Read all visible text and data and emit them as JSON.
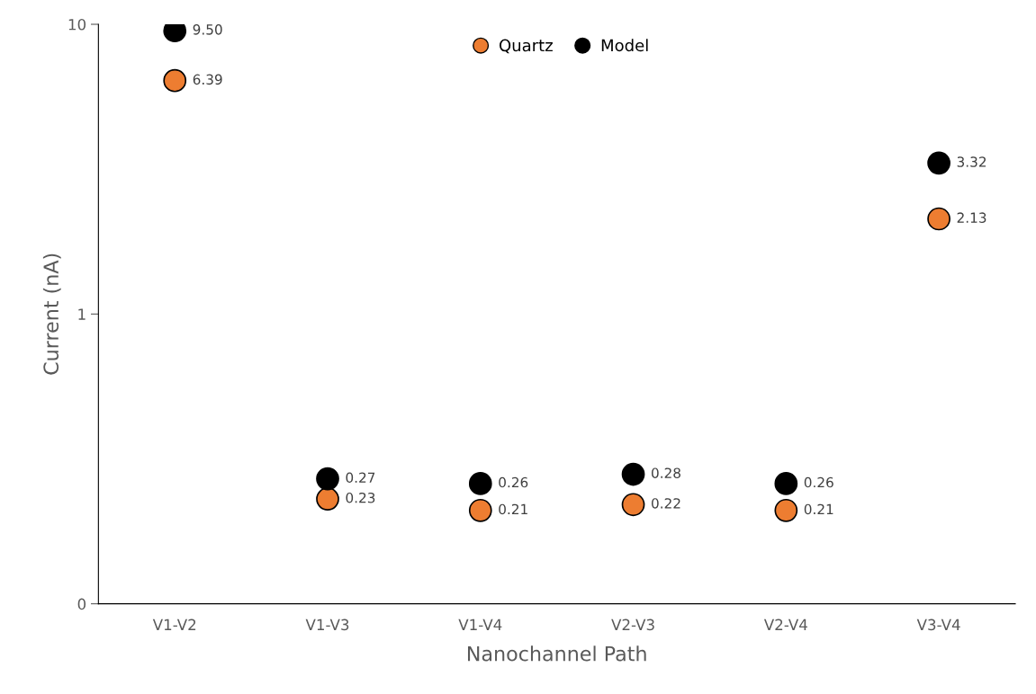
{
  "chart_data": {
    "type": "scatter",
    "xlabel": "Nanochannel Path",
    "ylabel": "Current (nA)",
    "categories": [
      "V1-V2",
      "V1-V3",
      "V1-V4",
      "V2-V3",
      "V2-V4",
      "V3-V4"
    ],
    "series": [
      {
        "name": "Quartz",
        "color": "#ed7d31",
        "values": [
          6.39,
          0.23,
          0.21,
          0.22,
          0.21,
          2.13
        ],
        "value_labels": [
          "6.39",
          "0.23",
          "0.21",
          "0.22",
          "0.21",
          "2.13"
        ]
      },
      {
        "name": "Model",
        "color": "#000000",
        "values": [
          9.5,
          0.27,
          0.26,
          0.28,
          0.26,
          3.32
        ],
        "value_labels": [
          "9.50",
          "0.27",
          "0.26",
          "0.28",
          "0.26",
          "3.32"
        ]
      }
    ],
    "log": "y",
    "ylim": [
      0.1,
      10
    ],
    "yticks": [
      {
        "value": 0.1,
        "label": "0"
      },
      1,
      10
    ],
    "legend": "top",
    "grid": false,
    "marker": "circle"
  }
}
